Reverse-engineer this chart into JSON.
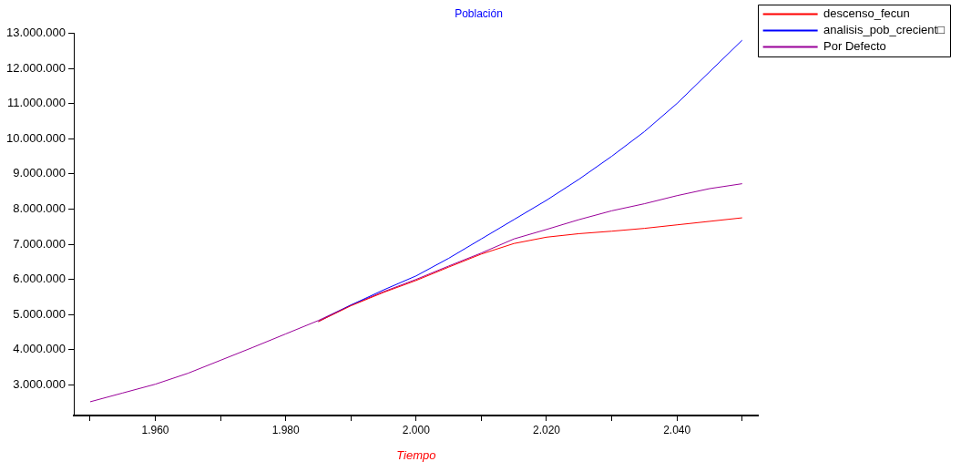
{
  "chart_data": {
    "type": "line",
    "title": "Población",
    "xlabel": "Tiempo",
    "grid": false,
    "legend": "top right",
    "marker": "none",
    "line_style": "solid",
    "xlim": [
      1947.5,
      2052.5
    ],
    "ylim": [
      2130000,
      13000000
    ],
    "xticks": [
      {
        "value": 1950,
        "label": null
      },
      {
        "value": 1960,
        "label": "1.960"
      },
      {
        "value": 1970,
        "label": null
      },
      {
        "value": 1980,
        "label": "1.980"
      },
      {
        "value": 1990,
        "label": null
      },
      {
        "value": 2000,
        "label": "2.000"
      },
      {
        "value": 2010,
        "label": null
      },
      {
        "value": 2020,
        "label": "2.020"
      },
      {
        "value": 2030,
        "label": null
      },
      {
        "value": 2040,
        "label": "2.040"
      },
      {
        "value": 2050,
        "label": null
      }
    ],
    "yticks": [
      {
        "value": 3000000,
        "label": "3.000.000"
      },
      {
        "value": 4000000,
        "label": "4.000.000"
      },
      {
        "value": 5000000,
        "label": "5.000.000"
      },
      {
        "value": 6000000,
        "label": "6.000.000"
      },
      {
        "value": 7000000,
        "label": "7.000.000"
      },
      {
        "value": 8000000,
        "label": "8.000.000"
      },
      {
        "value": 9000000,
        "label": "9.000.000"
      },
      {
        "value": 10000000,
        "label": "10.000.000"
      },
      {
        "value": 11000000,
        "label": "11.000.000"
      },
      {
        "value": 12000000,
        "label": "12.000.000"
      },
      {
        "value": 13000000,
        "label": "13.000.000"
      }
    ],
    "series": [
      {
        "name": "descenso_fecun",
        "color": "#ff0000",
        "x": [
          1985,
          1990,
          1995,
          2000,
          2005,
          2010,
          2015,
          2020,
          2025,
          2030,
          2035,
          2040,
          2045,
          2050
        ],
        "values": [
          4800000,
          5250000,
          5630000,
          5970000,
          6350000,
          6720000,
          7020000,
          7200000,
          7300000,
          7370000,
          7450000,
          7550000,
          7650000,
          7750000
        ]
      },
      {
        "name": "analisis_pob_crecient□",
        "color": "#0000ff",
        "x": [
          1985,
          1990,
          1995,
          2000,
          2005,
          2010,
          2015,
          2020,
          2025,
          2030,
          2035,
          2040,
          2045,
          2050
        ],
        "values": [
          4800000,
          5270000,
          5700000,
          6100000,
          6600000,
          7150000,
          7700000,
          8250000,
          8850000,
          9500000,
          10200000,
          11000000,
          11900000,
          12800000
        ]
      },
      {
        "name": "Por Defecto",
        "color": "#990099",
        "x": [
          1950,
          1955,
          1960,
          1965,
          1970,
          1975,
          1980,
          1985,
          1990,
          1995,
          2000,
          2005,
          2010,
          2015,
          2020,
          2025,
          2030,
          2035,
          2040,
          2045,
          2050
        ],
        "values": [
          2520000,
          2770000,
          3020000,
          3330000,
          3700000,
          4070000,
          4450000,
          4830000,
          5270000,
          5650000,
          6000000,
          6380000,
          6750000,
          7150000,
          7420000,
          7700000,
          7950000,
          8150000,
          8380000,
          8580000,
          8720000
        ]
      }
    ]
  }
}
